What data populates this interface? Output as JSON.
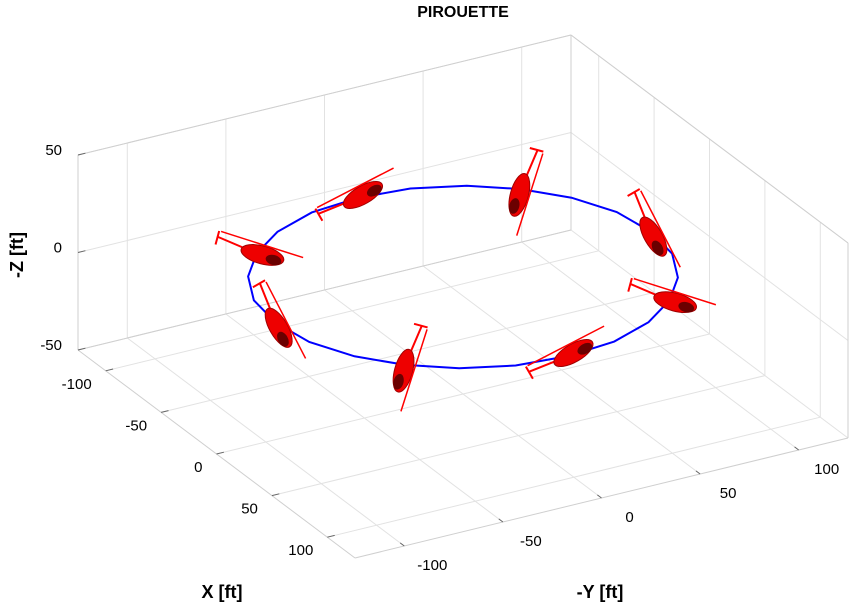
{
  "chart_data": {
    "type": "line3d",
    "title": "PIROUETTE",
    "xlabel": "X [ft]",
    "ylabel": "-Y [ft]",
    "zlabel": "-Z [ft]",
    "xlim": [
      -125,
      125
    ],
    "ylim": [
      -125,
      125
    ],
    "zlim": [
      -50,
      50
    ],
    "xticks": [
      -100,
      -50,
      0,
      50,
      100
    ],
    "yticks": [
      -100,
      -50,
      0,
      50,
      100
    ],
    "zticks": [
      -50,
      0,
      50
    ],
    "grid": true,
    "series": [
      {
        "color": "#0000ff",
        "x": [
          95,
          92,
          82,
          67,
          48,
          25,
          0,
          -25,
          -48,
          -67,
          -82,
          -92,
          -95,
          -92,
          -82,
          -67,
          -48,
          -25,
          0,
          25,
          48,
          67,
          82,
          92,
          95
        ],
        "y": [
          0,
          25,
          48,
          67,
          82,
          92,
          95,
          92,
          82,
          67,
          48,
          25,
          0,
          -25,
          -48,
          -67,
          -82,
          -92,
          -95,
          -92,
          -82,
          -67,
          -48,
          -25,
          0
        ],
        "z": [
          10,
          10,
          10,
          10,
          10,
          10,
          10,
          10,
          10,
          10,
          10,
          10,
          10,
          10,
          10,
          10,
          10,
          10,
          10,
          10,
          10,
          10,
          10,
          10,
          10
        ]
      }
    ]
  }
}
